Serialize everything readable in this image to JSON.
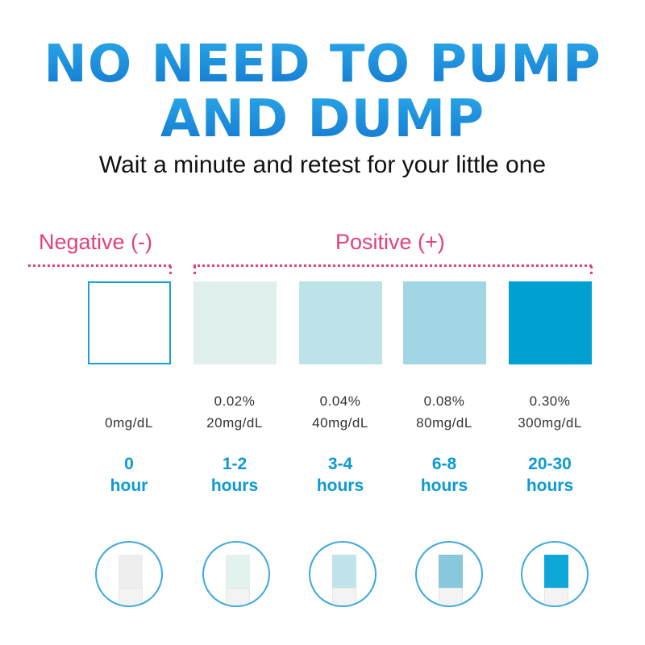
{
  "headline": {
    "line1": "NO NEED TO PUMP",
    "line2": "AND DUMP"
  },
  "subtitle": "Wait a minute and retest for your little one",
  "groups": {
    "negative": "Negative (-)",
    "positive": "Positive (+)",
    "color": "#e2407f"
  },
  "levels": [
    {
      "percent": "",
      "mg": "0mg/dL",
      "time": "0",
      "unit": "hour",
      "color": "#ffffff",
      "strip": "#eeeeee"
    },
    {
      "percent": "0.02%",
      "mg": "20mg/dL",
      "time": "1-2",
      "unit": "hours",
      "color": "#e0f0ec",
      "strip": "#e2f2ee"
    },
    {
      "percent": "0.04%",
      "mg": "40mg/dL",
      "time": "3-4",
      "unit": "hours",
      "color": "#bde3e8",
      "strip": "#c0e4e9"
    },
    {
      "percent": "0.08%",
      "mg": "80mg/dL",
      "time": "6-8",
      "unit": "hours",
      "color": "#a1d7e4",
      "strip": "#88c8dc"
    },
    {
      "percent": "0.30%",
      "mg": "300mg/dL",
      "time": "20-30",
      "unit": "hours",
      "color": "#00a0d2",
      "strip": "#0fa6d8"
    }
  ]
}
